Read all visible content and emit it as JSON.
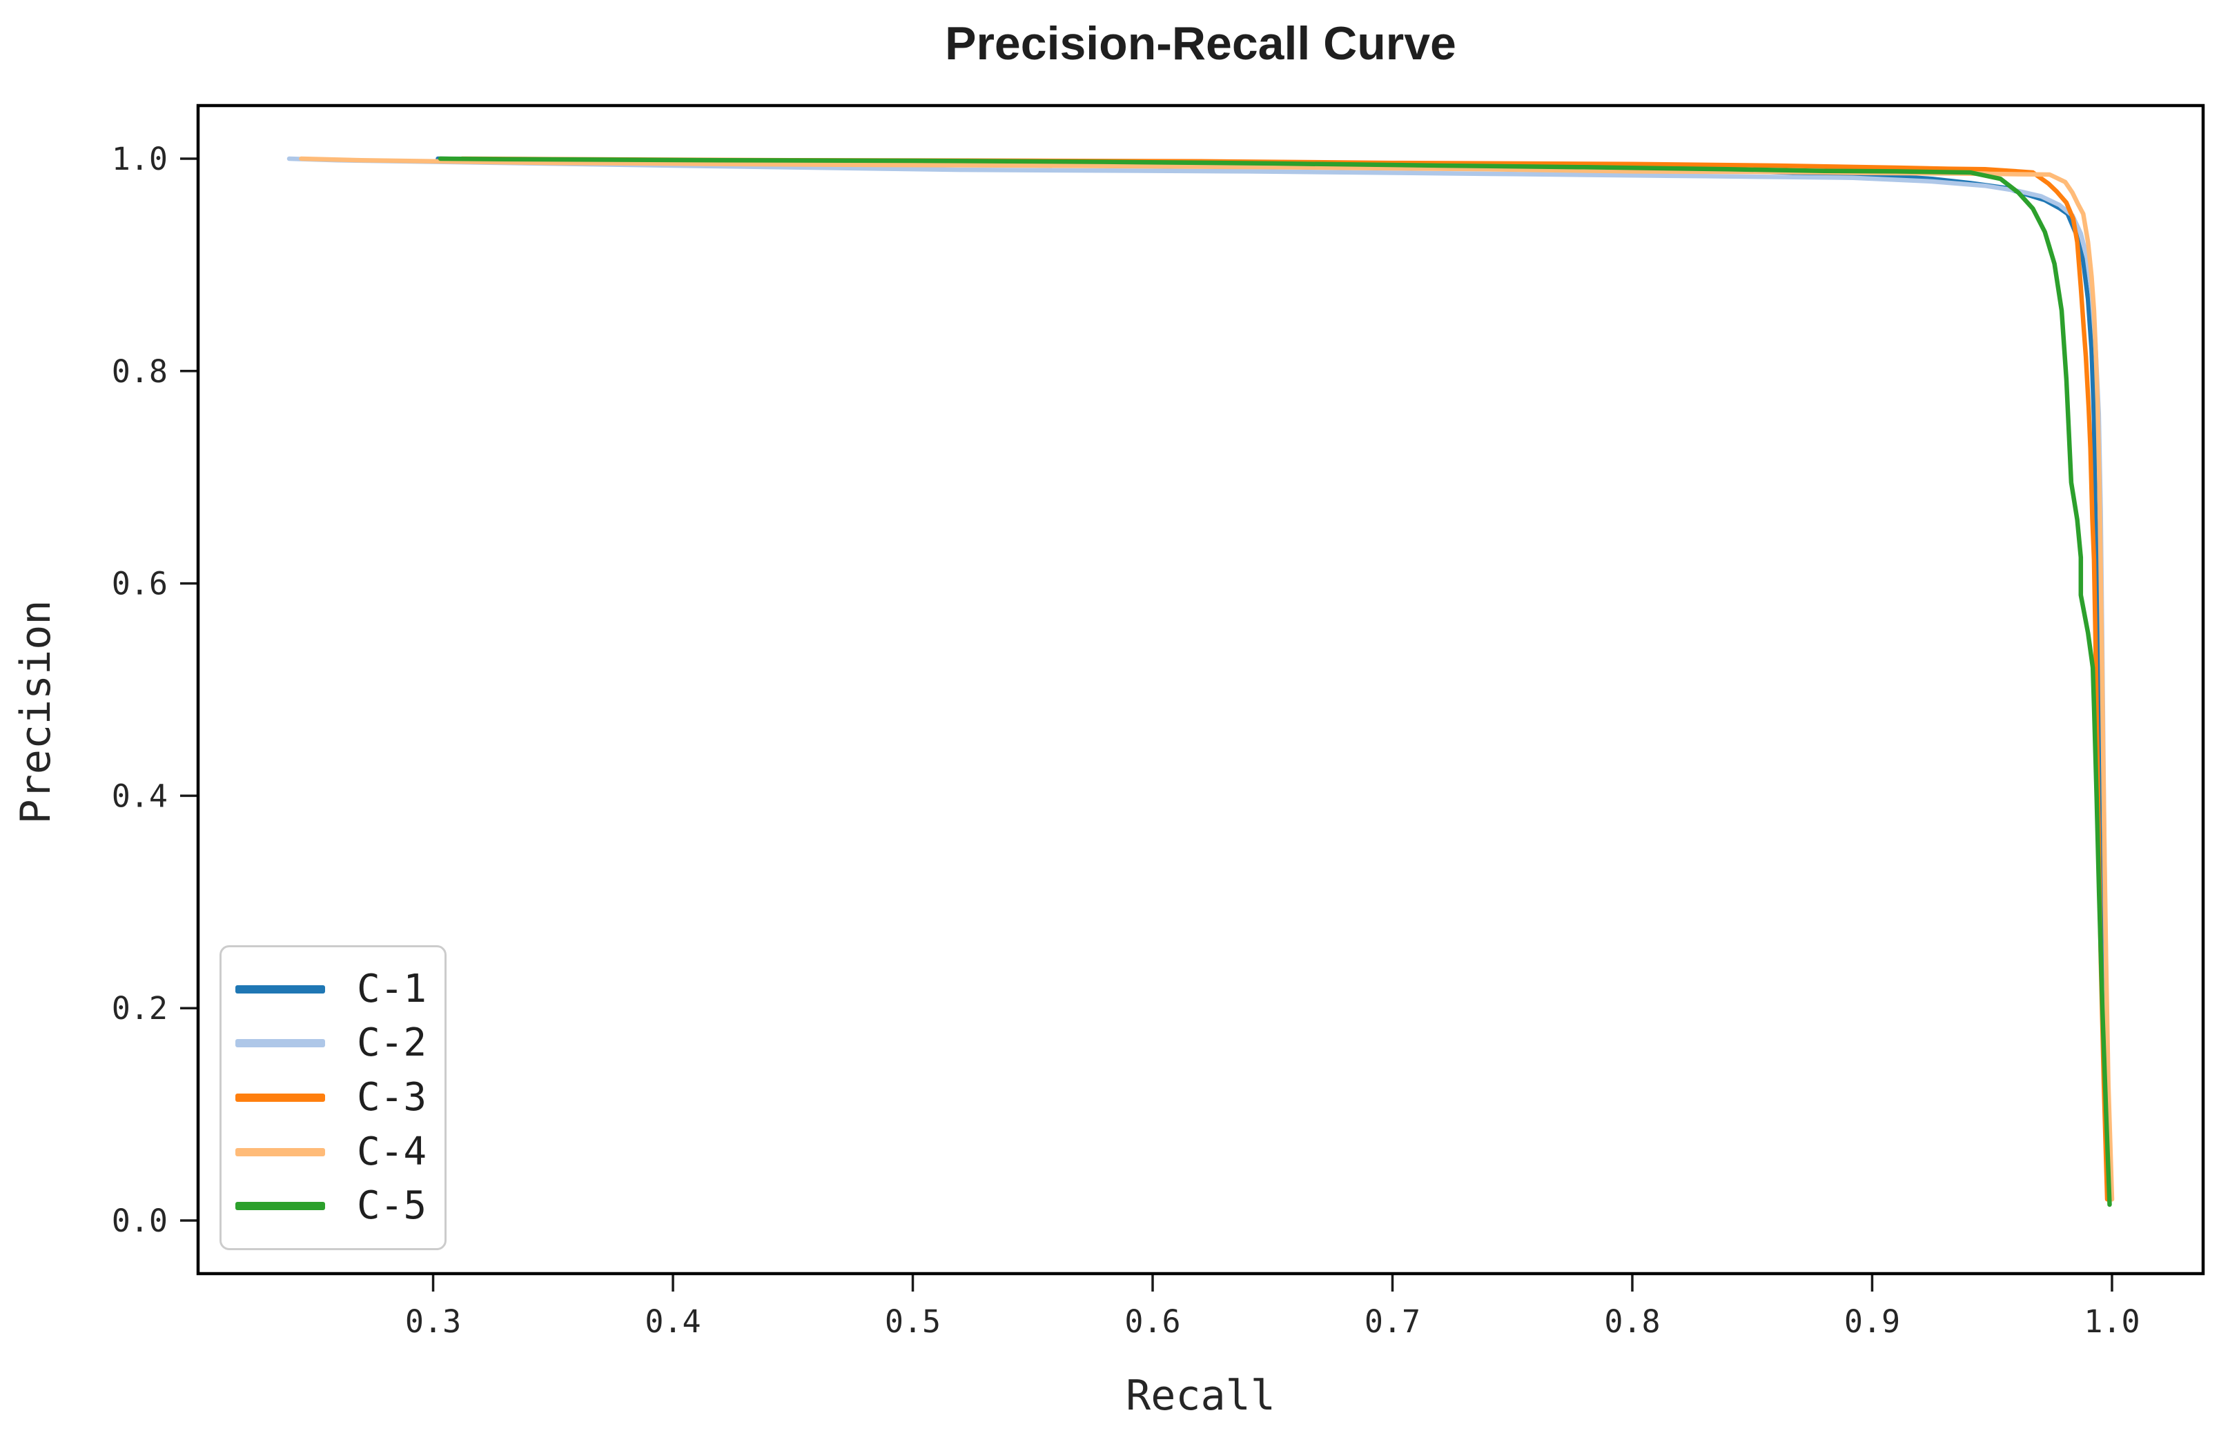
{
  "figure": {
    "background": "#ffffff"
  },
  "chart_data": {
    "type": "line",
    "title": "Precision-Recall Curve",
    "xlabel": "Recall",
    "ylabel": "Precision",
    "xlim": [
      0.202,
      1.038
    ],
    "ylim": [
      -0.05,
      1.05
    ],
    "x_ticks": [
      0.3,
      0.4,
      0.5,
      0.6,
      0.7,
      0.8,
      0.9,
      1.0
    ],
    "y_ticks": [
      0.0,
      0.2,
      0.4,
      0.6,
      0.8,
      1.0
    ],
    "grid": false,
    "axis_color": "#000000",
    "tick_color": "#1a1a1a",
    "text_color": "#262626",
    "line_width": 6.5,
    "legend": {
      "position": "lower left"
    },
    "series": [
      {
        "name": "C-1",
        "color": "#1f77b4",
        "points": [
          [
            0.302,
            1.0
          ],
          [
            0.33,
            0.999
          ],
          [
            0.42,
            0.997
          ],
          [
            0.5,
            0.9955
          ],
          [
            0.58,
            0.994
          ],
          [
            0.66,
            0.9925
          ],
          [
            0.74,
            0.991
          ],
          [
            0.8,
            0.9895
          ],
          [
            0.85,
            0.988
          ],
          [
            0.9,
            0.9845
          ],
          [
            0.925,
            0.981
          ],
          [
            0.941,
            0.977
          ],
          [
            0.9555,
            0.9725
          ],
          [
            0.9655,
            0.9655
          ],
          [
            0.972,
            0.961
          ],
          [
            0.978,
            0.9535
          ],
          [
            0.9815,
            0.948
          ],
          [
            0.985,
            0.9295
          ],
          [
            0.988,
            0.9035
          ],
          [
            0.99,
            0.8675
          ],
          [
            0.9915,
            0.82
          ],
          [
            0.9925,
            0.755
          ],
          [
            0.993,
            0.6785
          ],
          [
            0.9937,
            0.6
          ],
          [
            0.9944,
            0.5
          ],
          [
            0.9952,
            0.395
          ],
          [
            0.996,
            0.28
          ],
          [
            0.9975,
            0.148
          ],
          [
            0.999,
            0.02
          ]
        ]
      },
      {
        "name": "C-2",
        "color": "#aec7e8",
        "points": [
          [
            0.24,
            1.0
          ],
          [
            0.26,
            0.9985
          ],
          [
            0.33,
            0.996
          ],
          [
            0.4,
            0.9935
          ],
          [
            0.52,
            0.9895
          ],
          [
            0.64,
            0.988
          ],
          [
            0.75,
            0.9855
          ],
          [
            0.83,
            0.9835
          ],
          [
            0.892,
            0.982
          ],
          [
            0.925,
            0.9785
          ],
          [
            0.947,
            0.9745
          ],
          [
            0.961,
            0.9695
          ],
          [
            0.9705,
            0.9645
          ],
          [
            0.978,
            0.9565
          ],
          [
            0.9835,
            0.9465
          ],
          [
            0.987,
            0.9295
          ],
          [
            0.9895,
            0.9075
          ],
          [
            0.9915,
            0.875
          ],
          [
            0.993,
            0.8295
          ],
          [
            0.9945,
            0.7595
          ],
          [
            0.9953,
            0.6685
          ],
          [
            0.9959,
            0.549
          ],
          [
            0.9965,
            0.4185
          ],
          [
            0.9971,
            0.298
          ],
          [
            0.998,
            0.1685
          ],
          [
            0.9995,
            0.02
          ]
        ]
      },
      {
        "name": "C-3",
        "color": "#ff7f0e",
        "points": [
          [
            0.312,
            1.0
          ],
          [
            0.35,
            0.9995
          ],
          [
            0.45,
            0.9985
          ],
          [
            0.55,
            0.998
          ],
          [
            0.62,
            0.9975
          ],
          [
            0.7,
            0.996
          ],
          [
            0.8,
            0.995
          ],
          [
            0.86,
            0.9935
          ],
          [
            0.91,
            0.9915
          ],
          [
            0.932,
            0.9905
          ],
          [
            0.947,
            0.99
          ],
          [
            0.958,
            0.9885
          ],
          [
            0.967,
            0.987
          ],
          [
            0.9735,
            0.9765
          ],
          [
            0.977,
            0.969
          ],
          [
            0.981,
            0.9585
          ],
          [
            0.9838,
            0.9435
          ],
          [
            0.9855,
            0.9215
          ],
          [
            0.987,
            0.879
          ],
          [
            0.9882,
            0.8405
          ],
          [
            0.9891,
            0.8135
          ],
          [
            0.9903,
            0.765
          ],
          [
            0.991,
            0.727
          ],
          [
            0.9918,
            0.6605
          ],
          [
            0.9925,
            0.6225
          ],
          [
            0.9931,
            0.5485
          ],
          [
            0.9937,
            0.4595
          ],
          [
            0.9944,
            0.3695
          ],
          [
            0.9953,
            0.2495
          ],
          [
            0.9966,
            0.1295
          ],
          [
            0.998,
            0.02
          ]
        ]
      },
      {
        "name": "C-4",
        "color": "#ffbb78",
        "points": [
          [
            0.245,
            1.0
          ],
          [
            0.27,
            0.9985
          ],
          [
            0.35,
            0.996
          ],
          [
            0.45,
            0.9945
          ],
          [
            0.55,
            0.9935
          ],
          [
            0.65,
            0.992
          ],
          [
            0.74,
            0.99
          ],
          [
            0.8,
            0.988
          ],
          [
            0.86,
            0.9875
          ],
          [
            0.9,
            0.9865
          ],
          [
            0.935,
            0.986
          ],
          [
            0.9555,
            0.9855
          ],
          [
            0.974,
            0.985
          ],
          [
            0.9805,
            0.978
          ],
          [
            0.9835,
            0.968
          ],
          [
            0.986,
            0.9565
          ],
          [
            0.988,
            0.948
          ],
          [
            0.99,
            0.9215
          ],
          [
            0.9915,
            0.889
          ],
          [
            0.9925,
            0.857
          ],
          [
            0.9933,
            0.8145
          ],
          [
            0.994,
            0.7705
          ],
          [
            0.9947,
            0.7
          ],
          [
            0.9952,
            0.6285
          ],
          [
            0.9957,
            0.549
          ],
          [
            0.9962,
            0.459
          ],
          [
            0.9968,
            0.359
          ],
          [
            0.9975,
            0.2485
          ],
          [
            0.9985,
            0.1285
          ],
          [
            1.0,
            0.02
          ]
        ]
      },
      {
        "name": "C-5",
        "color": "#2ca02c",
        "points": [
          [
            0.303,
            1.0
          ],
          [
            0.33,
            0.9995
          ],
          [
            0.42,
            0.9985
          ],
          [
            0.5,
            0.998
          ],
          [
            0.58,
            0.997
          ],
          [
            0.65,
            0.9955
          ],
          [
            0.72,
            0.9935
          ],
          [
            0.78,
            0.992
          ],
          [
            0.84,
            0.99
          ],
          [
            0.88,
            0.9885
          ],
          [
            0.91,
            0.988
          ],
          [
            0.941,
            0.987
          ],
          [
            0.9535,
            0.981
          ],
          [
            0.961,
            0.968
          ],
          [
            0.967,
            0.953
          ],
          [
            0.972,
            0.931
          ],
          [
            0.976,
            0.901
          ],
          [
            0.979,
            0.857
          ],
          [
            0.981,
            0.792
          ],
          [
            0.983,
            0.695
          ],
          [
            0.9855,
            0.66
          ],
          [
            0.987,
            0.6245
          ],
          [
            0.987,
            0.589
          ],
          [
            0.99,
            0.5535
          ],
          [
            0.992,
            0.5205
          ],
          [
            0.9926,
            0.4785
          ],
          [
            0.9936,
            0.3985
          ],
          [
            0.9946,
            0.3085
          ],
          [
            0.996,
            0.1985
          ],
          [
            0.9976,
            0.0985
          ],
          [
            0.999,
            0.015
          ]
        ]
      }
    ]
  }
}
